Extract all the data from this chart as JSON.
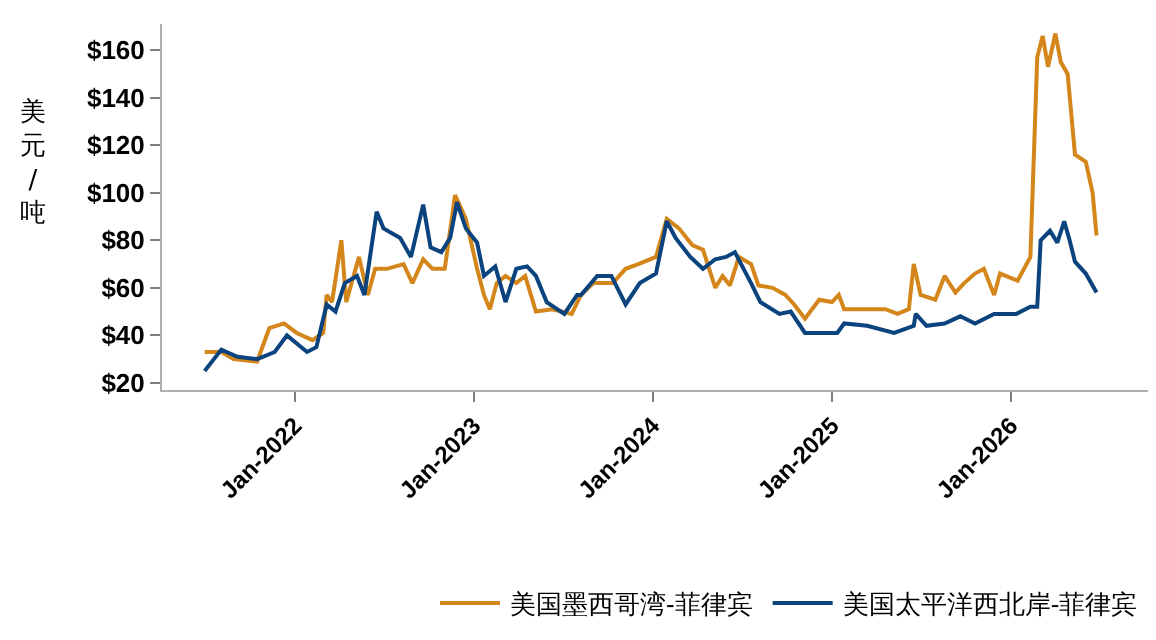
{
  "chart_data": {
    "type": "line",
    "ylabel": "美元/吨",
    "legend": "bottom",
    "xlim": [
      "2021-04-05",
      "2026-10-08"
    ],
    "ylim": [
      17,
      171
    ],
    "xticks": [
      {
        "value": "2022-01-01",
        "label": "Jan-2022"
      },
      {
        "value": "2023-01-01",
        "label": "Jan-2023"
      },
      {
        "value": "2024-01-01",
        "label": "Jan-2024"
      },
      {
        "value": "2025-01-01",
        "label": "Jan-2025"
      },
      {
        "value": "2026-01-01",
        "label": "Jan-2026"
      }
    ],
    "yticks": [
      {
        "value": 20,
        "label": "$20"
      },
      {
        "value": 40,
        "label": "$40"
      },
      {
        "value": 60,
        "label": "$60"
      },
      {
        "value": 80,
        "label": "$80"
      },
      {
        "value": 100,
        "label": "$100"
      },
      {
        "value": 120,
        "label": "$120"
      },
      {
        "value": 140,
        "label": "$140"
      },
      {
        "value": 160,
        "label": "$160"
      }
    ],
    "series": [
      {
        "name": "美国墨西哥湾-菲律宾",
        "color": "#d4861b",
        "x": [
          "2021-07-01",
          "2021-08-04",
          "2021-08-29",
          "2021-10-16",
          "2021-11-10",
          "2021-12-10",
          "2022-01-05",
          "2022-02-06",
          "2022-02-28",
          "2022-03-07",
          "2022-03-18",
          "2022-04-06",
          "2022-04-16",
          "2022-05-12",
          "2022-05-30",
          "2022-06-14",
          "2022-07-08",
          "2022-08-11",
          "2022-08-29",
          "2022-09-20",
          "2022-10-09",
          "2022-11-03",
          "2022-11-24",
          "2022-12-16",
          "2023-01-08",
          "2023-01-22",
          "2023-02-03",
          "2023-02-17",
          "2023-03-07",
          "2023-03-29",
          "2023-04-16",
          "2023-05-08",
          "2023-06-10",
          "2023-07-20",
          "2023-08-08",
          "2023-09-02",
          "2023-10-12",
          "2023-11-07",
          "2023-12-03",
          "2024-01-08",
          "2024-01-30",
          "2024-02-24",
          "2024-03-22",
          "2024-04-13",
          "2024-05-08",
          "2024-05-23",
          "2024-06-07",
          "2024-06-25",
          "2024-07-20",
          "2024-08-04",
          "2024-09-02",
          "2024-09-28",
          "2024-10-16",
          "2024-11-07",
          "2024-12-06",
          "2025-01-01",
          "2025-01-15",
          "2025-01-26",
          "2025-02-24",
          "2025-04-20",
          "2025-05-15",
          "2025-06-07",
          "2025-06-17",
          "2025-07-01",
          "2025-07-31",
          "2025-08-19",
          "2025-09-10",
          "2025-09-28",
          "2025-10-20",
          "2025-11-07",
          "2025-11-28",
          "2025-12-10",
          "2026-01-15",
          "2026-02-10",
          "2026-02-24",
          "2026-03-07",
          "2026-03-18",
          "2026-04-02",
          "2026-04-13",
          "2026-04-27",
          "2026-05-12",
          "2026-06-03",
          "2026-06-17",
          "2026-06-25"
        ],
        "values": [
          33,
          33,
          30,
          29,
          43,
          45,
          41,
          38,
          41,
          57,
          54,
          80,
          54,
          73,
          57,
          68,
          68,
          70,
          62,
          72,
          68,
          68,
          99,
          89,
          68,
          57,
          51,
          62,
          65,
          62,
          65,
          50,
          51,
          49,
          57,
          62,
          62,
          68,
          70,
          73,
          89,
          85,
          78,
          76,
          60,
          65,
          61,
          73,
          70,
          61,
          60,
          57,
          53,
          47,
          55,
          54,
          57,
          51,
          51,
          51,
          49,
          51,
          70,
          57,
          55,
          65,
          58,
          62,
          66,
          68,
          57,
          66,
          63,
          73,
          157,
          166,
          153,
          167,
          155,
          150,
          116,
          113,
          100,
          82
        ]
      },
      {
        "name": "美国太平洋西北岸-菲律宾",
        "color": "#0b437f",
        "x": [
          "2021-07-01",
          "2021-08-04",
          "2021-09-06",
          "2021-10-16",
          "2021-11-21",
          "2021-12-16",
          "2022-01-26",
          "2022-02-14",
          "2022-03-07",
          "2022-03-25",
          "2022-04-13",
          "2022-05-08",
          "2022-05-23",
          "2022-06-17",
          "2022-07-01",
          "2022-08-04",
          "2022-08-26",
          "2022-09-20",
          "2022-10-05",
          "2022-10-27",
          "2022-11-14",
          "2022-11-28",
          "2022-12-16",
          "2023-01-08",
          "2023-01-22",
          "2023-02-14",
          "2023-03-07",
          "2023-03-29",
          "2023-04-20",
          "2023-05-08",
          "2023-05-30",
          "2023-07-05",
          "2023-07-31",
          "2023-08-08",
          "2023-09-10",
          "2023-10-09",
          "2023-11-07",
          "2023-12-06",
          "2024-01-08",
          "2024-01-30",
          "2024-02-17",
          "2024-03-18",
          "2024-04-13",
          "2024-05-08",
          "2024-05-30",
          "2024-06-17",
          "2024-07-20",
          "2024-08-08",
          "2024-09-16",
          "2024-10-09",
          "2024-11-07",
          "2024-12-10",
          "2025-01-12",
          "2025-01-26",
          "2025-03-14",
          "2025-05-08",
          "2025-06-17",
          "2025-06-21",
          "2025-07-13",
          "2025-08-19",
          "2025-09-20",
          "2025-10-20",
          "2025-11-28",
          "2026-01-12",
          "2026-02-10",
          "2026-02-24",
          "2026-03-03",
          "2026-03-22",
          "2026-04-06",
          "2026-04-20",
          "2026-05-01",
          "2026-05-12",
          "2026-06-03",
          "2026-06-25"
        ],
        "values": [
          25,
          34,
          31,
          30,
          33,
          40,
          33,
          35,
          53,
          50,
          62,
          65,
          57,
          92,
          85,
          81,
          73,
          95,
          77,
          75,
          81,
          96,
          85,
          79,
          65,
          69,
          54,
          68,
          69,
          65,
          54,
          49,
          57,
          57,
          65,
          65,
          53,
          62,
          66,
          88,
          81,
          73,
          68,
          72,
          73,
          75,
          62,
          54,
          49,
          50,
          41,
          41,
          41,
          45,
          44,
          41,
          44,
          49,
          44,
          45,
          48,
          45,
          49,
          49,
          52,
          52,
          80,
          84,
          79,
          88,
          80,
          71,
          66,
          58
        ]
      }
    ]
  }
}
